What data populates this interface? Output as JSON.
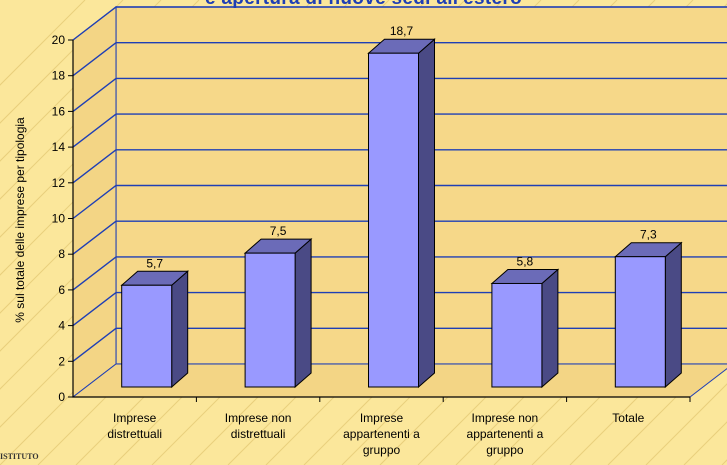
{
  "page": {
    "title_partial": "e apertura di nuove sedi all'estero",
    "footer_text": "ISTITUTO"
  },
  "colors": {
    "background": "#fbe79b",
    "bar_front": "#9999ff",
    "bar_side": "#4a4a85",
    "bar_top": "#6b6bb8",
    "grid": "#1f3fb5",
    "title": "#1f3fb5"
  },
  "chart_data": {
    "type": "bar",
    "categories": [
      "Imprese\ndistrettuali",
      "Imprese non\ndistrettuali",
      "Imprese\nappartenenti a\ngruppo",
      "Imprese non\nappartenenti a\ngruppo",
      "Totale"
    ],
    "values": [
      5.7,
      7.5,
      18.7,
      5.8,
      7.3
    ],
    "value_labels": [
      "5,7",
      "7,5",
      "18,7",
      "5,8",
      "7,3"
    ],
    "ylabel": "% sul totale delle imprese per tipologia",
    "ylim": [
      0,
      20
    ],
    "yticks": [
      0,
      2,
      4,
      6,
      8,
      10,
      12,
      14,
      16,
      18,
      20
    ],
    "grid": true,
    "style": "3d-column"
  }
}
